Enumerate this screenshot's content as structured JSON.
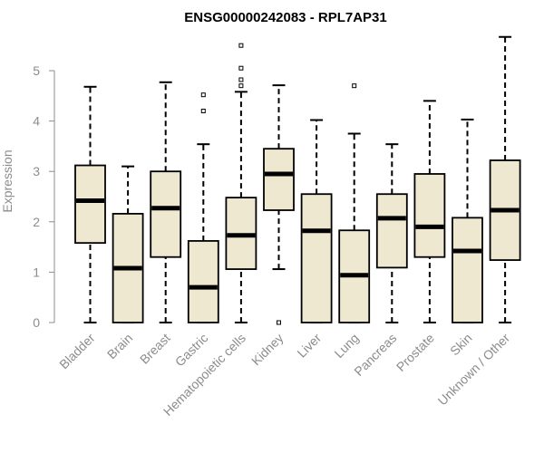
{
  "chart_data": {
    "type": "boxplot",
    "title": "ENSG00000242083 - RPL7AP31",
    "xlabel": "",
    "ylabel": "Expression",
    "ylim": [
      0,
      5.75
    ],
    "yticks": [
      0,
      1,
      2,
      3,
      4,
      5
    ],
    "grid": false,
    "box_fill": "#efe8d1",
    "box_stroke": "#000000",
    "axis_color": "#8c8c8c",
    "categories": [
      "Bladder",
      "Brain",
      "Breast",
      "Gastric",
      "Hematopoietic cells",
      "Kidney",
      "Liver",
      "Lung",
      "Pancreas",
      "Prostate",
      "Skin",
      "Unknown / Other"
    ],
    "boxes": [
      {
        "category": "Bladder",
        "whisker_low": 0,
        "q1": 1.58,
        "median": 2.42,
        "q3": 3.12,
        "whisker_high": 4.68,
        "outliers": []
      },
      {
        "category": "Brain",
        "whisker_low": 0,
        "q1": 0,
        "median": 1.08,
        "q3": 2.16,
        "whisker_high": 3.1,
        "outliers": []
      },
      {
        "category": "Breast",
        "whisker_low": 0,
        "q1": 1.3,
        "median": 2.27,
        "q3": 3.0,
        "whisker_high": 4.77,
        "outliers": []
      },
      {
        "category": "Gastric",
        "whisker_low": 0,
        "q1": 0,
        "median": 0.7,
        "q3": 1.62,
        "whisker_high": 3.54,
        "outliers": [
          4.2,
          4.52
        ]
      },
      {
        "category": "Hematopoietic cells",
        "whisker_low": 0,
        "q1": 1.06,
        "median": 1.73,
        "q3": 2.48,
        "whisker_high": 4.58,
        "outliers": [
          4.7,
          4.82,
          5.05,
          5.5
        ]
      },
      {
        "category": "Kidney",
        "whisker_low": 1.06,
        "q1": 2.23,
        "median": 2.95,
        "q3": 3.45,
        "whisker_high": 4.71,
        "outliers": [
          0
        ]
      },
      {
        "category": "Liver",
        "whisker_low": 0,
        "q1": 0,
        "median": 1.82,
        "q3": 2.55,
        "whisker_high": 4.02,
        "outliers": []
      },
      {
        "category": "Lung",
        "whisker_low": 0,
        "q1": 0,
        "median": 0.94,
        "q3": 1.83,
        "whisker_high": 3.75,
        "outliers": [
          4.7
        ]
      },
      {
        "category": "Pancreas",
        "whisker_low": 0,
        "q1": 1.09,
        "median": 2.07,
        "q3": 2.55,
        "whisker_high": 3.54,
        "outliers": []
      },
      {
        "category": "Prostate",
        "whisker_low": 0,
        "q1": 1.3,
        "median": 1.9,
        "q3": 2.95,
        "whisker_high": 4.4,
        "outliers": []
      },
      {
        "category": "Skin",
        "whisker_low": 0,
        "q1": 0,
        "median": 1.42,
        "q3": 2.08,
        "whisker_high": 4.03,
        "outliers": []
      },
      {
        "category": "Unknown / Other",
        "whisker_low": 0,
        "q1": 1.24,
        "median": 2.23,
        "q3": 3.22,
        "whisker_high": 5.67,
        "outliers": []
      }
    ]
  }
}
